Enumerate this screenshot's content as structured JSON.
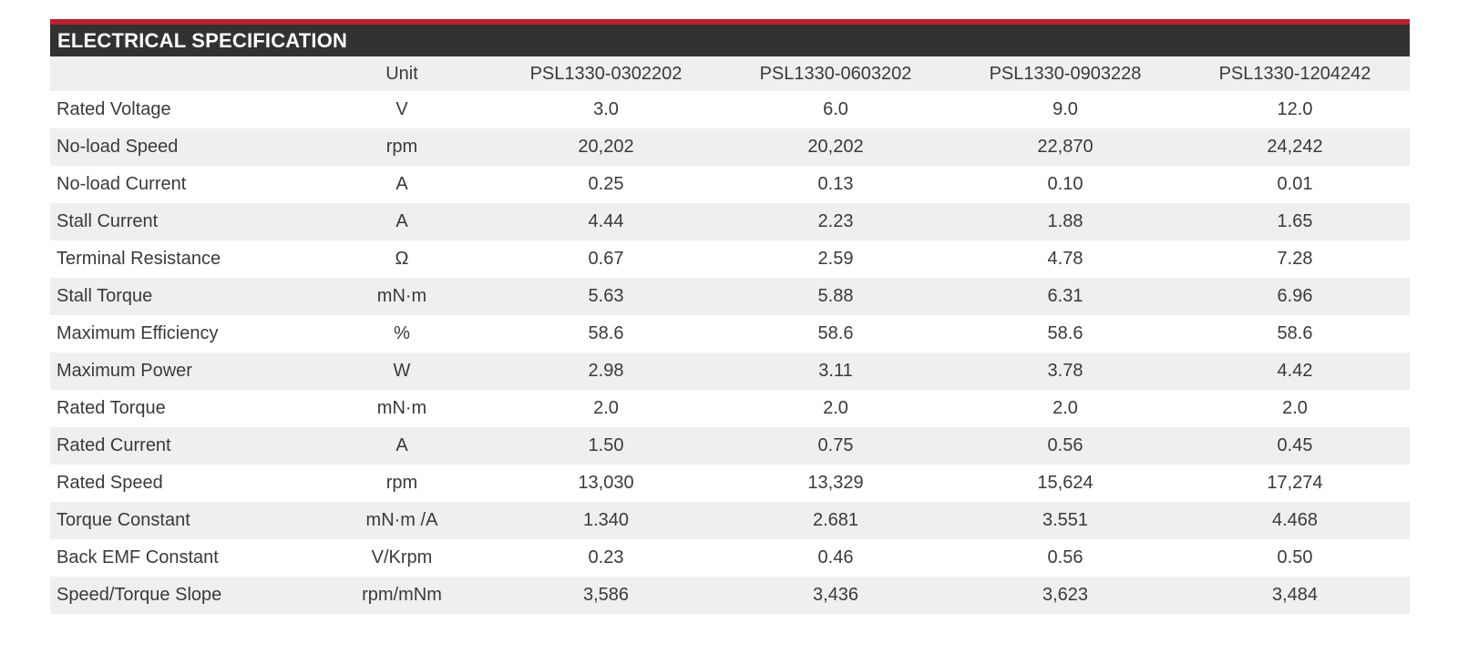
{
  "section": {
    "title": "ELECTRICAL SPECIFICATION"
  },
  "colors": {
    "accent": "#be1e2d",
    "header_bg": "#323232",
    "alt_row_bg": "#efefef",
    "text": "#3a3a3a",
    "title_text": "#ffffff"
  },
  "table": {
    "columns": [
      "",
      "Unit",
      "PSL1330-0302202",
      "PSL1330-0603202",
      "PSL1330-0903228",
      "PSL1330-1204242"
    ],
    "rows": [
      {
        "label": "Rated Voltage",
        "unit": "V",
        "values": [
          "3.0",
          "6.0",
          "9.0",
          "12.0"
        ]
      },
      {
        "label": "No-load Speed",
        "unit": "rpm",
        "values": [
          "20,202",
          "20,202",
          "22,870",
          "24,242"
        ]
      },
      {
        "label": "No-load Current",
        "unit": "A",
        "values": [
          "0.25",
          "0.13",
          "0.10",
          "0.01"
        ]
      },
      {
        "label": "Stall Current",
        "unit": "A",
        "values": [
          "4.44",
          "2.23",
          "1.88",
          "1.65"
        ]
      },
      {
        "label": "Terminal Resistance",
        "unit": "Ω",
        "values": [
          "0.67",
          "2.59",
          "4.78",
          "7.28"
        ]
      },
      {
        "label": "Stall Torque",
        "unit": "mN·m",
        "values": [
          "5.63",
          "5.88",
          "6.31",
          "6.96"
        ]
      },
      {
        "label": "Maximum Efficiency",
        "unit": "%",
        "values": [
          "58.6",
          "58.6",
          "58.6",
          "58.6"
        ]
      },
      {
        "label": "Maximum Power",
        "unit": "W",
        "values": [
          "2.98",
          "3.11",
          "3.78",
          "4.42"
        ]
      },
      {
        "label": "Rated Torque",
        "unit": "mN·m",
        "values": [
          "2.0",
          "2.0",
          "2.0",
          "2.0"
        ]
      },
      {
        "label": "Rated Current",
        "unit": "A",
        "values": [
          "1.50",
          "0.75",
          "0.56",
          "0.45"
        ]
      },
      {
        "label": "Rated Speed",
        "unit": "rpm",
        "values": [
          "13,030",
          "13,329",
          "15,624",
          "17,274"
        ]
      },
      {
        "label": "Torque Constant",
        "unit": "mN·m /A",
        "values": [
          "1.340",
          "2.681",
          "3.551",
          "4.468"
        ]
      },
      {
        "label": "Back EMF Constant",
        "unit": "V/Krpm",
        "values": [
          "0.23",
          "0.46",
          "0.56",
          "0.50"
        ]
      },
      {
        "label": "Speed/Torque Slope",
        "unit": "rpm/mNm",
        "values": [
          "3,586",
          "3,436",
          "3,623",
          "3,484"
        ]
      }
    ]
  }
}
